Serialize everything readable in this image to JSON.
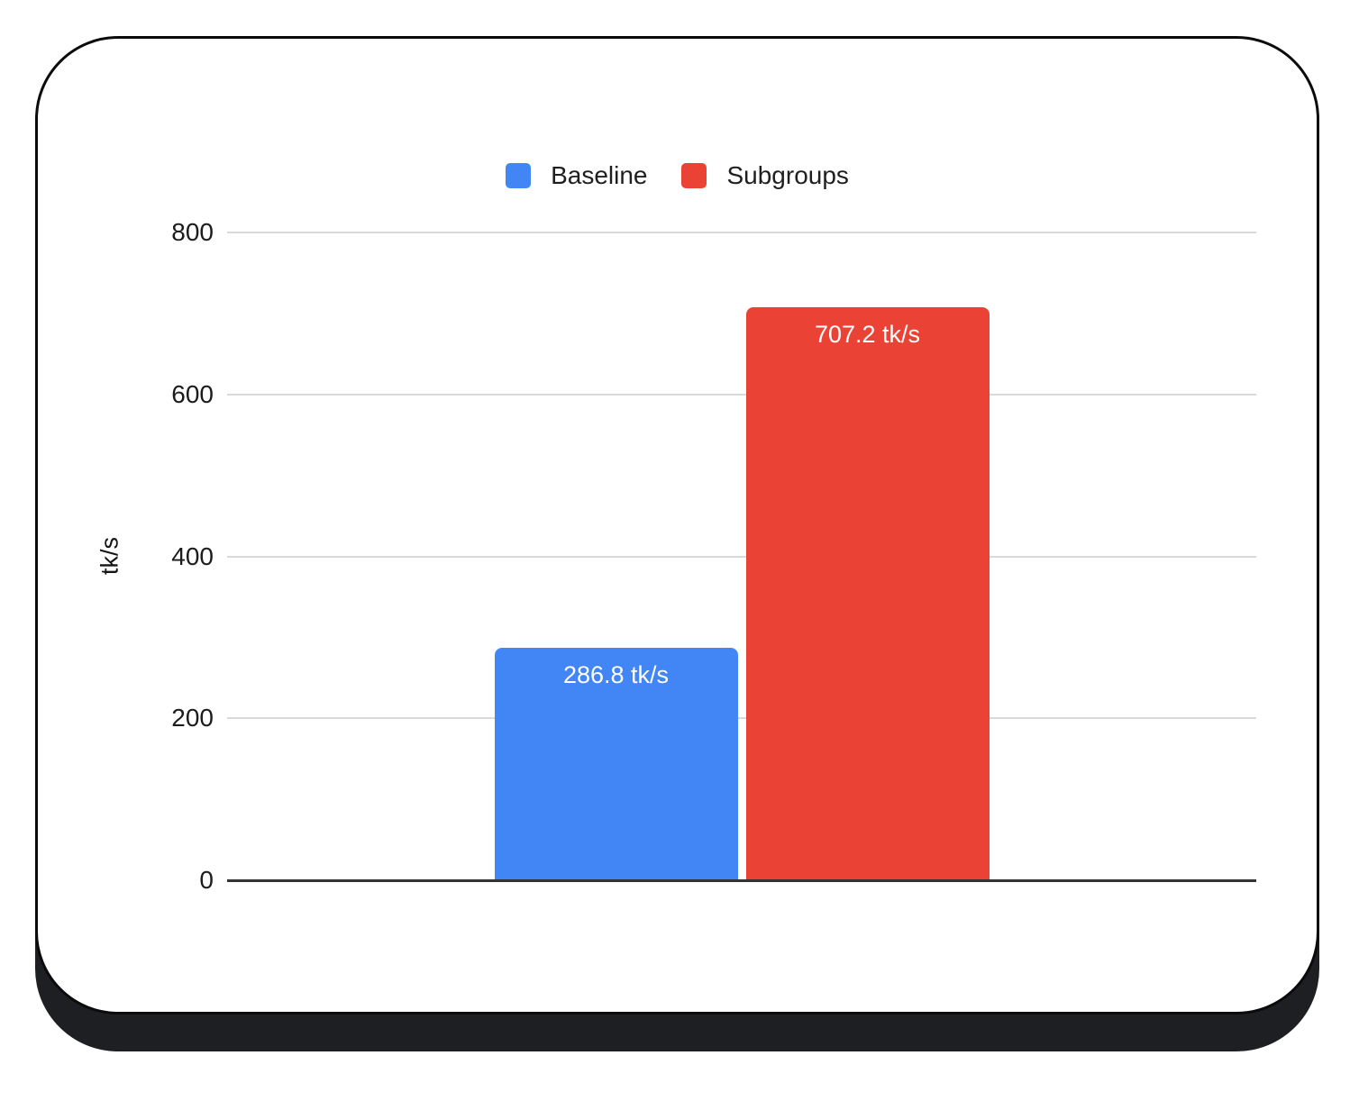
{
  "chart_data": {
    "type": "bar",
    "title": "",
    "categories": [
      ""
    ],
    "series": [
      {
        "name": "Baseline",
        "values": [
          286.8
        ],
        "data_labels": [
          "286.8 tk/s"
        ],
        "color": "#4285F4"
      },
      {
        "name": "Subgroups",
        "values": [
          707.2
        ],
        "data_labels": [
          "707.2 tk/s"
        ],
        "color": "#EA4335"
      }
    ],
    "xlabel": "",
    "ylabel": "tk/s",
    "ylim": [
      0,
      800
    ],
    "yticks": [
      0,
      200,
      400,
      600,
      800
    ],
    "grid": true,
    "legend_position": "top",
    "legend": [
      "Baseline",
      "Subgroups"
    ]
  },
  "colors": {
    "baseline": "#4285F4",
    "subgroups": "#EA4335",
    "gridline": "#d9d9d9",
    "axis_line": "#333333",
    "bar_label_text": "#ffffff",
    "card_border": "#0b0b0b",
    "card_shadow": "#1e1f23",
    "card_background": "#ffffff",
    "text": "#1f1f1f"
  }
}
